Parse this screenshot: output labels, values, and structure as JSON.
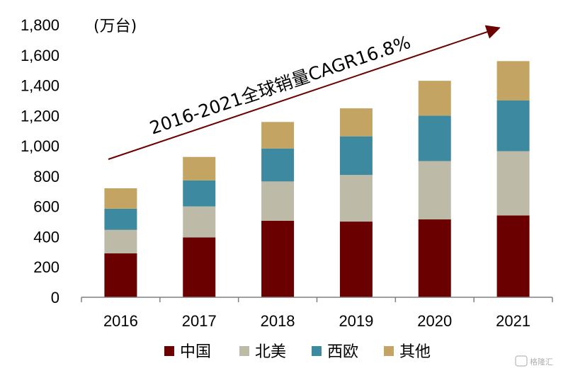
{
  "chart_data": {
    "type": "bar",
    "stacked": true,
    "unit_label": "(万台)",
    "categories": [
      "2016",
      "2017",
      "2018",
      "2019",
      "2020",
      "2021"
    ],
    "series": [
      {
        "name": "中国",
        "color": "#6b0000",
        "values": [
          290,
          395,
          505,
          500,
          515,
          540
        ]
      },
      {
        "name": "北美",
        "color": "#bdbaa8",
        "values": [
          155,
          205,
          260,
          308,
          385,
          425
        ]
      },
      {
        "name": "西欧",
        "color": "#3d8aa0",
        "values": [
          140,
          172,
          218,
          255,
          300,
          335
        ]
      },
      {
        "name": "其他",
        "color": "#c4a462",
        "values": [
          135,
          155,
          175,
          185,
          230,
          260
        ]
      }
    ],
    "ylim": [
      0,
      1800
    ],
    "yticks": [
      "0",
      "200",
      "400",
      "600",
      "800",
      "1,000",
      "1,200",
      "1,400",
      "1,600",
      "1,800"
    ],
    "annotation": "2016-2021全球销量CAGR16.8%",
    "legend_position": "bottom"
  },
  "watermark": "格隆汇"
}
